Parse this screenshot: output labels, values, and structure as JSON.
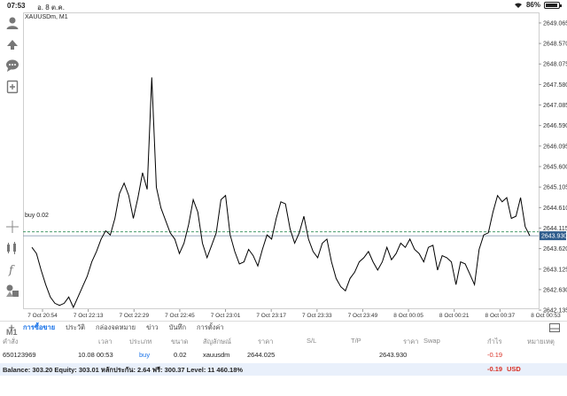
{
  "status_bar": {
    "time": "07:53",
    "date": "อ. 8 ต.ค.",
    "battery": "86%"
  },
  "sidebar": {
    "icons": [
      "account-icon",
      "trade-icon",
      "chat-icon",
      "new-order-icon",
      "crosshair-icon",
      "indicators-icon",
      "function-icon",
      "objects-icon"
    ],
    "timeframe": "M1"
  },
  "chart": {
    "symbol": "XAUUSDm, M1",
    "buy_line_label": "buy 0.02",
    "current_price_label": "2643.930",
    "colors": {
      "line": "#000000",
      "buy_line": "#2e8b57",
      "bid_line": "#7a8fa8",
      "price_tag": "#2f5c8c",
      "grid": "#e6e6e6"
    }
  },
  "chart_data": {
    "type": "line",
    "title": "XAUUSDm, M1",
    "y_ticks": [
      "2649.065",
      "2648.570",
      "2648.075",
      "2647.580",
      "2647.085",
      "2646.590",
      "2646.095",
      "2645.600",
      "2645.105",
      "2644.610",
      "2644.115",
      "2643.620",
      "2643.125",
      "2642.630",
      "2642.135"
    ],
    "x_ticks": [
      "7 Oct 20:54",
      "7 Oct 22:13",
      "7 Oct 22:29",
      "7 Oct 22:45",
      "7 Oct 23:01",
      "7 Oct 23:17",
      "7 Oct 23:33",
      "7 Oct 23:49",
      "8 Oct 00:05",
      "8 Oct 00:21",
      "8 Oct 00:37",
      "8 Oct 00:53"
    ],
    "ylim": [
      2641.88,
      2649.32
    ],
    "buy_level": 2644.025,
    "current_price": 2643.93,
    "values": [
      2643.65,
      2643.5,
      2643.1,
      2642.75,
      2642.45,
      2642.3,
      2642.25,
      2642.3,
      2642.45,
      2642.2,
      2642.45,
      2642.7,
      2642.95,
      2643.3,
      2643.55,
      2643.85,
      2644.05,
      2643.95,
      2644.35,
      2644.95,
      2645.2,
      2644.9,
      2644.35,
      2644.85,
      2645.45,
      2645.05,
      2647.75,
      2645.1,
      2644.6,
      2644.3,
      2644.0,
      2643.85,
      2643.5,
      2643.75,
      2644.2,
      2644.8,
      2644.5,
      2643.75,
      2643.4,
      2643.7,
      2644.0,
      2644.8,
      2644.9,
      2643.95,
      2643.55,
      2643.25,
      2643.3,
      2643.6,
      2643.45,
      2643.2,
      2643.6,
      2643.95,
      2643.85,
      2644.35,
      2644.75,
      2644.7,
      2644.1,
      2643.75,
      2644.0,
      2644.4,
      2643.85,
      2643.55,
      2643.4,
      2643.75,
      2643.85,
      2643.3,
      2642.9,
      2642.7,
      2642.6,
      2642.9,
      2643.05,
      2643.3,
      2643.4,
      2643.55,
      2643.3,
      2643.1,
      2643.3,
      2643.65,
      2643.35,
      2643.5,
      2643.75,
      2643.65,
      2643.85,
      2643.6,
      2643.5,
      2643.3,
      2643.65,
      2643.7,
      2643.1,
      2643.45,
      2643.4,
      2643.3,
      2642.75,
      2643.3,
      2643.25,
      2643.0,
      2642.75,
      2643.6,
      2643.95,
      2644.0,
      2644.5,
      2644.9,
      2644.75,
      2644.85,
      2644.35,
      2644.4,
      2644.85,
      2644.15,
      2643.93
    ]
  },
  "terminal": {
    "tabs": [
      "การซื้อขาย",
      "ประวัติ",
      "กล่องจดหมาย",
      "ข่าว",
      "บันทึก",
      "การตั้งค่า"
    ],
    "columns": [
      "คำสั่ง",
      "เวลา",
      "ประเภท",
      "ขนาด",
      "สัญลักษณ์",
      "ราคา",
      "S/L",
      "T/P",
      "ราคา",
      "Swap",
      "กำไร",
      "หมายเหตุ"
    ],
    "row": {
      "order": "650123969",
      "time": "10.08 00:53",
      "type": "buy",
      "size": "0.02",
      "symbol": "xauusdm",
      "open_price": "2644.025",
      "sl": "",
      "tp": "",
      "current_price": "2643.930",
      "swap": "",
      "profit": "-0.19"
    },
    "balance_text": "Balance: 303.20 Equity: 303.01 หลักประกัน: 2.64 ฟรี: 300.37 Level: 11 460.18%",
    "total_profit": "-0.19",
    "currency": "USD"
  }
}
